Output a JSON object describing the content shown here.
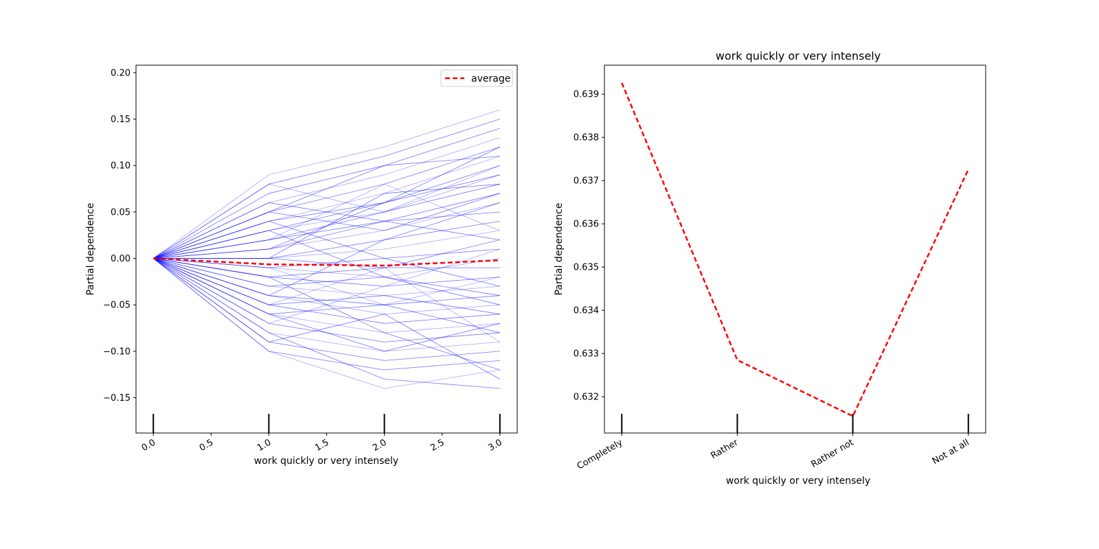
{
  "chart_data": [
    {
      "type": "line",
      "title": "",
      "xlabel": "work quickly or very intensely",
      "ylabel": "Partial dependence",
      "xlim": [
        -0.15,
        3.15
      ],
      "ylim": [
        -0.188,
        0.208
      ],
      "x_ticks": [
        0.0,
        0.5,
        1.0,
        1.5,
        2.0,
        2.5,
        3.0
      ],
      "x_tick_labels": [
        "0.0",
        "0.5",
        "1.0",
        "1.5",
        "2.0",
        "2.5",
        "3.0"
      ],
      "y_ticks": [
        -0.15,
        -0.1,
        -0.05,
        0.0,
        0.05,
        0.1,
        0.15,
        0.2
      ],
      "y_tick_labels": [
        "−0.15",
        "−0.10",
        "−0.05",
        "0.00",
        "0.05",
        "0.10",
        "0.15",
        "0.20"
      ],
      "rug_x": [
        0,
        1,
        2,
        3
      ],
      "legend": {
        "placement": "top-right",
        "entries": [
          {
            "name": "average",
            "color": "#ff0000",
            "style": "dashed"
          }
        ]
      },
      "ice_x": [
        0,
        1,
        2,
        3
      ],
      "ice_color": "#0000ff",
      "ice_lines": [
        [
          0,
          0.09,
          0.12,
          0.16
        ],
        [
          0,
          0.08,
          0.11,
          0.15
        ],
        [
          0,
          0.07,
          0.1,
          0.14
        ],
        [
          0,
          0.06,
          0.09,
          0.13
        ],
        [
          0,
          0.05,
          0.08,
          0.12
        ],
        [
          0,
          0.05,
          0.1,
          0.11
        ],
        [
          0,
          0.04,
          0.07,
          0.11
        ],
        [
          0,
          0.04,
          0.06,
          0.1
        ],
        [
          0,
          0.03,
          0.06,
          0.09
        ],
        [
          0,
          0.03,
          0.05,
          0.1
        ],
        [
          0,
          0.02,
          0.05,
          0.08
        ],
        [
          0,
          0.02,
          0.04,
          0.07
        ],
        [
          0,
          0.01,
          0.03,
          0.06
        ],
        [
          0,
          0.01,
          0.04,
          0.05
        ],
        [
          0,
          0.0,
          0.02,
          0.04
        ],
        [
          0,
          0.0,
          0.01,
          0.03
        ],
        [
          0,
          0.0,
          -0.01,
          0.02
        ],
        [
          0,
          -0.01,
          0.0,
          0.01
        ],
        [
          0,
          -0.01,
          -0.02,
          0.0
        ],
        [
          0,
          -0.02,
          -0.01,
          -0.01
        ],
        [
          0,
          -0.02,
          -0.03,
          -0.02
        ],
        [
          0,
          -0.03,
          -0.04,
          -0.03
        ],
        [
          0,
          -0.03,
          -0.02,
          -0.04
        ],
        [
          0,
          -0.04,
          -0.05,
          -0.04
        ],
        [
          0,
          -0.04,
          -0.06,
          -0.05
        ],
        [
          0,
          -0.05,
          -0.04,
          -0.06
        ],
        [
          0,
          -0.05,
          -0.07,
          -0.06
        ],
        [
          0,
          -0.06,
          -0.08,
          -0.07
        ],
        [
          0,
          -0.06,
          -0.05,
          -0.08
        ],
        [
          0,
          -0.07,
          -0.09,
          -0.08
        ],
        [
          0,
          -0.08,
          -0.1,
          -0.09
        ],
        [
          0,
          -0.09,
          -0.11,
          -0.1
        ],
        [
          0,
          -0.1,
          -0.12,
          -0.11
        ],
        [
          0,
          -0.1,
          -0.14,
          -0.12
        ],
        [
          0,
          -0.08,
          -0.13,
          -0.14
        ],
        [
          0,
          0.06,
          0.04,
          0.02
        ],
        [
          0,
          -0.07,
          -0.03,
          0.01
        ],
        [
          0,
          0.03,
          -0.02,
          -0.05
        ],
        [
          0,
          -0.04,
          0.02,
          0.06
        ],
        [
          0,
          0.02,
          0.08,
          0.03
        ],
        [
          0,
          -0.02,
          -0.08,
          -0.12
        ],
        [
          0,
          0.01,
          0.06,
          0.12
        ],
        [
          0,
          -0.05,
          -0.01,
          -0.09
        ],
        [
          0,
          0.04,
          0.0,
          -0.03
        ],
        [
          0,
          -0.09,
          -0.06,
          -0.13
        ],
        [
          0,
          0.08,
          0.05,
          0.09
        ],
        [
          0,
          -0.06,
          -0.1,
          -0.07
        ],
        [
          0,
          0.0,
          0.07,
          0.08
        ],
        [
          0,
          -0.01,
          -0.05,
          -0.02
        ],
        [
          0,
          0.05,
          0.03,
          0.07
        ]
      ],
      "series": [
        {
          "name": "average",
          "x": [
            0,
            1,
            2,
            3
          ],
          "values": [
            0.0,
            -0.0064,
            -0.0077,
            -0.002
          ],
          "color": "#ff0000",
          "style": "dashed"
        }
      ]
    },
    {
      "type": "line",
      "title": "work quickly or very intensely",
      "xlabel": "work quickly or very intensely",
      "ylabel": "Partial dependence",
      "categories": [
        "Completely",
        "Rather",
        "Rather not",
        "Not at all"
      ],
      "ylim": [
        0.63116,
        0.63967
      ],
      "y_ticks": [
        0.632,
        0.633,
        0.634,
        0.635,
        0.636,
        0.637,
        0.638,
        0.639
      ],
      "y_tick_labels": [
        "0.632",
        "0.633",
        "0.634",
        "0.635",
        "0.636",
        "0.637",
        "0.638",
        "0.639"
      ],
      "rug_x": [
        0,
        1,
        2,
        3
      ],
      "series": [
        {
          "values": [
            0.63926,
            0.63285,
            0.63155,
            0.63726
          ],
          "color": "#ff0000",
          "style": "dashed"
        }
      ]
    }
  ]
}
